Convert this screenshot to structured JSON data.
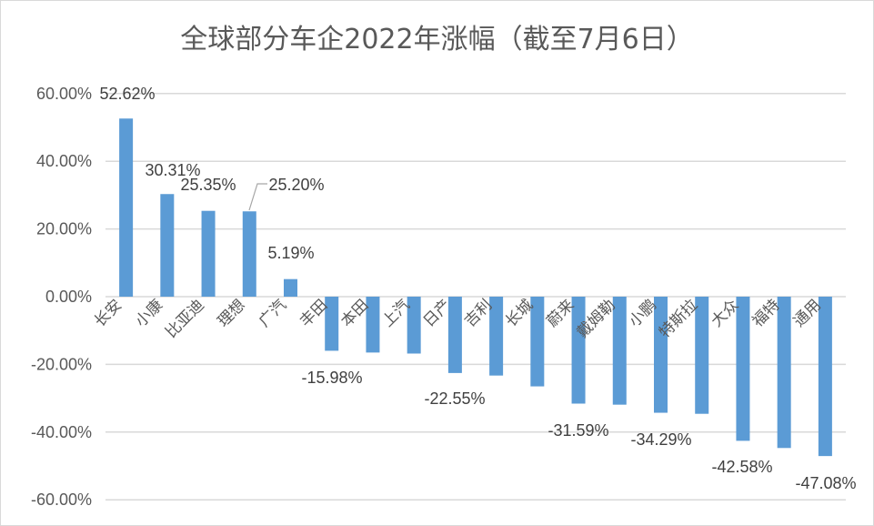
{
  "chart_data": {
    "type": "bar",
    "title": "全球部分车企2022年涨幅（截至7月6日）",
    "xlabel": "",
    "ylabel": "",
    "ylim": [
      -0.6,
      0.6
    ],
    "yticks": [
      "60.00%",
      "40.00%",
      "20.00%",
      "0.00%",
      "-20.00%",
      "-40.00%",
      "-60.00%"
    ],
    "grid": true,
    "legend": null,
    "bar_color": "#5b9bd5",
    "categories": [
      "长安",
      "小康",
      "比亚迪",
      "理想",
      "广汽",
      "丰田",
      "本田",
      "上汽",
      "日产",
      "吉利",
      "长城",
      "蔚来",
      "戴姆勒",
      "小鹏",
      "特斯拉",
      "大众",
      "福特",
      "通用"
    ],
    "values": [
      52.62,
      30.31,
      25.35,
      25.2,
      5.19,
      -15.98,
      -16.5,
      -16.8,
      -22.55,
      -23.3,
      -26.5,
      -31.59,
      -31.9,
      -34.29,
      -34.6,
      -42.58,
      -44.7,
      -47.08
    ],
    "value_unit": "%",
    "data_labels": [
      {
        "index": 0,
        "text": "52.62%"
      },
      {
        "index": 1,
        "text": "30.31%"
      },
      {
        "index": 2,
        "text": "25.35%"
      },
      {
        "index": 3,
        "text": "25.20%"
      },
      {
        "index": 4,
        "text": "5.19%"
      },
      {
        "index": 5,
        "text": "-15.98%"
      },
      {
        "index": 8,
        "text": "-22.55%"
      },
      {
        "index": 11,
        "text": "-31.59%"
      },
      {
        "index": 13,
        "text": "-34.29%"
      },
      {
        "index": 15,
        "text": "-42.58%"
      },
      {
        "index": 17,
        "text": "-47.08%"
      }
    ]
  },
  "title": "全球部分车企2022年涨幅（截至7月6日）"
}
